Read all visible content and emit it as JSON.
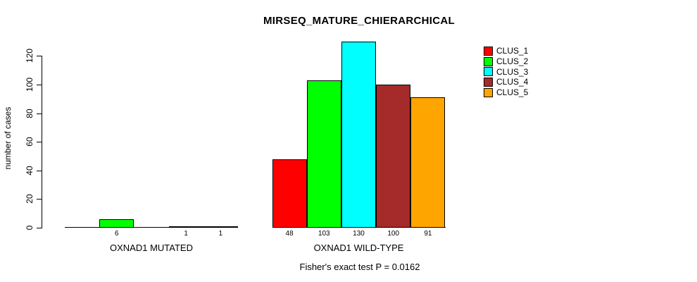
{
  "chart_data": {
    "type": "bar",
    "title": "MIRSEQ_MATURE_CHIERARCHICAL",
    "ylabel": "number of cases",
    "xlabel": "",
    "yticks": [
      0,
      20,
      40,
      60,
      80,
      100,
      120
    ],
    "ylim": [
      0,
      133
    ],
    "grid": false,
    "legend_position": "right-outside",
    "series": [
      {
        "name": "CLUS_1",
        "color": "#FF0000"
      },
      {
        "name": "CLUS_2",
        "color": "#00FF00"
      },
      {
        "name": "CLUS_3",
        "color": "#00FFFF"
      },
      {
        "name": "CLUS_4",
        "color": "#A52A2A"
      },
      {
        "name": "CLUS_5",
        "color": "#FFA500"
      }
    ],
    "groups": [
      {
        "label": "OXNAD1 MUTATED",
        "values": [
          0,
          6,
          0,
          1,
          1
        ]
      },
      {
        "label": "OXNAD1 WILD-TYPE",
        "values": [
          48,
          103,
          130,
          100,
          91
        ]
      }
    ],
    "value_labels_shown": [
      6,
      1,
      1,
      48,
      103,
      130,
      100,
      91
    ],
    "annotation": "Fisher's exact test P = 0.0162",
    "axis_color": "#000000",
    "background_color": "#FFFFFF"
  }
}
